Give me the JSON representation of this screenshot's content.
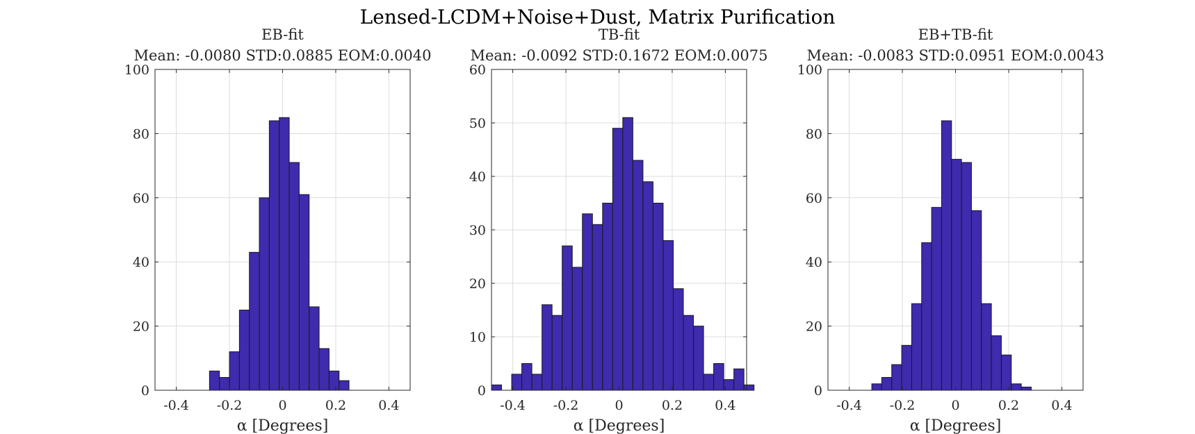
{
  "figure": {
    "title": "Lensed-LCDM+Noise+Dust, Matrix Purification"
  },
  "chart_data": [
    {
      "type": "bar",
      "title": "EB-fit",
      "subtitle": "Mean: -0.0080 STD:0.0885 EOM:0.0040",
      "xlabel": "α [Degrees]",
      "ylabel": "",
      "xlim": [
        -0.48,
        0.48
      ],
      "ylim": [
        0,
        100
      ],
      "xticks": [
        -0.4,
        -0.2,
        0,
        0.2,
        0.4
      ],
      "xtick_labels": [
        "-0.4",
        "-0.2",
        "0",
        "0.2",
        "0.4"
      ],
      "yticks": [
        0,
        20,
        40,
        60,
        80,
        100
      ],
      "ytick_labels": [
        "0",
        "20",
        "40",
        "60",
        "80",
        "100"
      ],
      "grid": true,
      "bin_width": 0.0375,
      "bin_start": -0.275,
      "values": [
        6,
        4,
        12,
        25,
        43,
        60,
        84,
        85,
        71,
        61,
        26,
        13,
        6,
        3
      ],
      "bar_color": "#3e2bad"
    },
    {
      "type": "bar",
      "title": "TB-fit",
      "subtitle": "Mean: -0.0092 STD:0.1672 EOM:0.0075",
      "xlabel": "α [Degrees]",
      "ylabel": "",
      "xlim": [
        -0.48,
        0.48
      ],
      "ylim": [
        0,
        60
      ],
      "xticks": [
        -0.4,
        -0.2,
        0,
        0.2,
        0.4
      ],
      "xtick_labels": [
        "-0.4",
        "-0.2",
        "0",
        "0.2",
        "0.4"
      ],
      "yticks": [
        0,
        10,
        20,
        30,
        40,
        50,
        60
      ],
      "ytick_labels": [
        "0",
        "10",
        "20",
        "30",
        "40",
        "50",
        "60"
      ],
      "grid": true,
      "bin_width": 0.038,
      "bin_start": -0.48,
      "values": [
        1,
        0,
        3,
        5,
        3,
        16,
        14,
        27,
        23,
        33,
        31,
        35,
        49,
        51,
        43,
        39,
        35,
        28,
        19,
        14,
        12,
        3,
        5,
        2,
        4,
        1
      ],
      "bar_color": "#3e2bad"
    },
    {
      "type": "bar",
      "title": "EB+TB-fit",
      "subtitle": "Mean: -0.0083 STD:0.0951 EOM:0.0043",
      "xlabel": "α [Degrees]",
      "ylabel": "",
      "xlim": [
        -0.48,
        0.48
      ],
      "ylim": [
        0,
        100
      ],
      "xticks": [
        -0.4,
        -0.2,
        0,
        0.2,
        0.4
      ],
      "xtick_labels": [
        "-0.4",
        "-0.2",
        "0",
        "0.2",
        "0.4"
      ],
      "yticks": [
        0,
        20,
        40,
        60,
        80,
        100
      ],
      "ytick_labels": [
        "0",
        "20",
        "40",
        "60",
        "80",
        "100"
      ],
      "grid": true,
      "bin_width": 0.0375,
      "bin_start": -0.315,
      "values": [
        2,
        4,
        8,
        14,
        27,
        46,
        57,
        84,
        72,
        71,
        56,
        27,
        17,
        11,
        2,
        1
      ],
      "bar_color": "#3e2bad"
    }
  ]
}
